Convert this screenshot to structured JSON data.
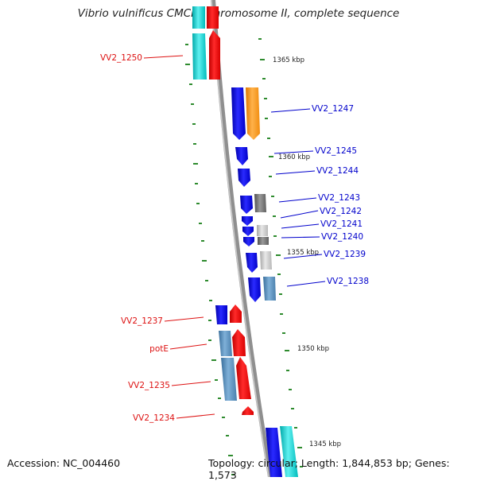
{
  "title": "Vibrio vulnificus CMCP6 chromosome II, complete sequence",
  "accession_line": "Accession: NC_004460",
  "stats_line": "Topology: circular; Length: 1,844,853 bp; Genes: 1,573",
  "colors": {
    "forward_label": "#dd1111",
    "reverse_label": "#0000cc",
    "tick": "#2e8b2e",
    "backbone": "#8f8f8f"
  },
  "scale_labels": [
    {
      "label": "1365 kbp"
    },
    {
      "label": "1360 kbp"
    },
    {
      "label": "1355 kbp"
    },
    {
      "label": "1350 kbp"
    },
    {
      "label": "1345 kbp"
    }
  ],
  "genes": [
    {
      "label": "VV2_1250",
      "strand": "forward",
      "color_name": "cyan"
    },
    {
      "label": "VV2_1247",
      "strand": "reverse",
      "color_name": "orange"
    },
    {
      "label": "VV2_1245",
      "strand": "reverse",
      "color_name": "blue"
    },
    {
      "label": "VV2_1244",
      "strand": "reverse",
      "color_name": "blue"
    },
    {
      "label": "VV2_1243",
      "strand": "reverse",
      "color_name": "dark-gray"
    },
    {
      "label": "VV2_1242",
      "strand": "reverse",
      "color_name": "blue"
    },
    {
      "label": "VV2_1241",
      "strand": "reverse",
      "color_name": "light-gray"
    },
    {
      "label": "VV2_1240",
      "strand": "reverse",
      "color_name": "dark-gray"
    },
    {
      "label": "VV2_1239",
      "strand": "reverse",
      "color_name": "light-gray"
    },
    {
      "label": "VV2_1238",
      "strand": "reverse",
      "color_name": "steel-blue"
    },
    {
      "label": "VV2_1237",
      "strand": "forward",
      "color_name": "red"
    },
    {
      "label": "potE",
      "strand": "forward",
      "color_name": "steel-blue"
    },
    {
      "label": "VV2_1235",
      "strand": "forward",
      "color_name": "steel-blue"
    },
    {
      "label": "VV2_1234",
      "strand": "forward",
      "color_name": "red"
    }
  ]
}
